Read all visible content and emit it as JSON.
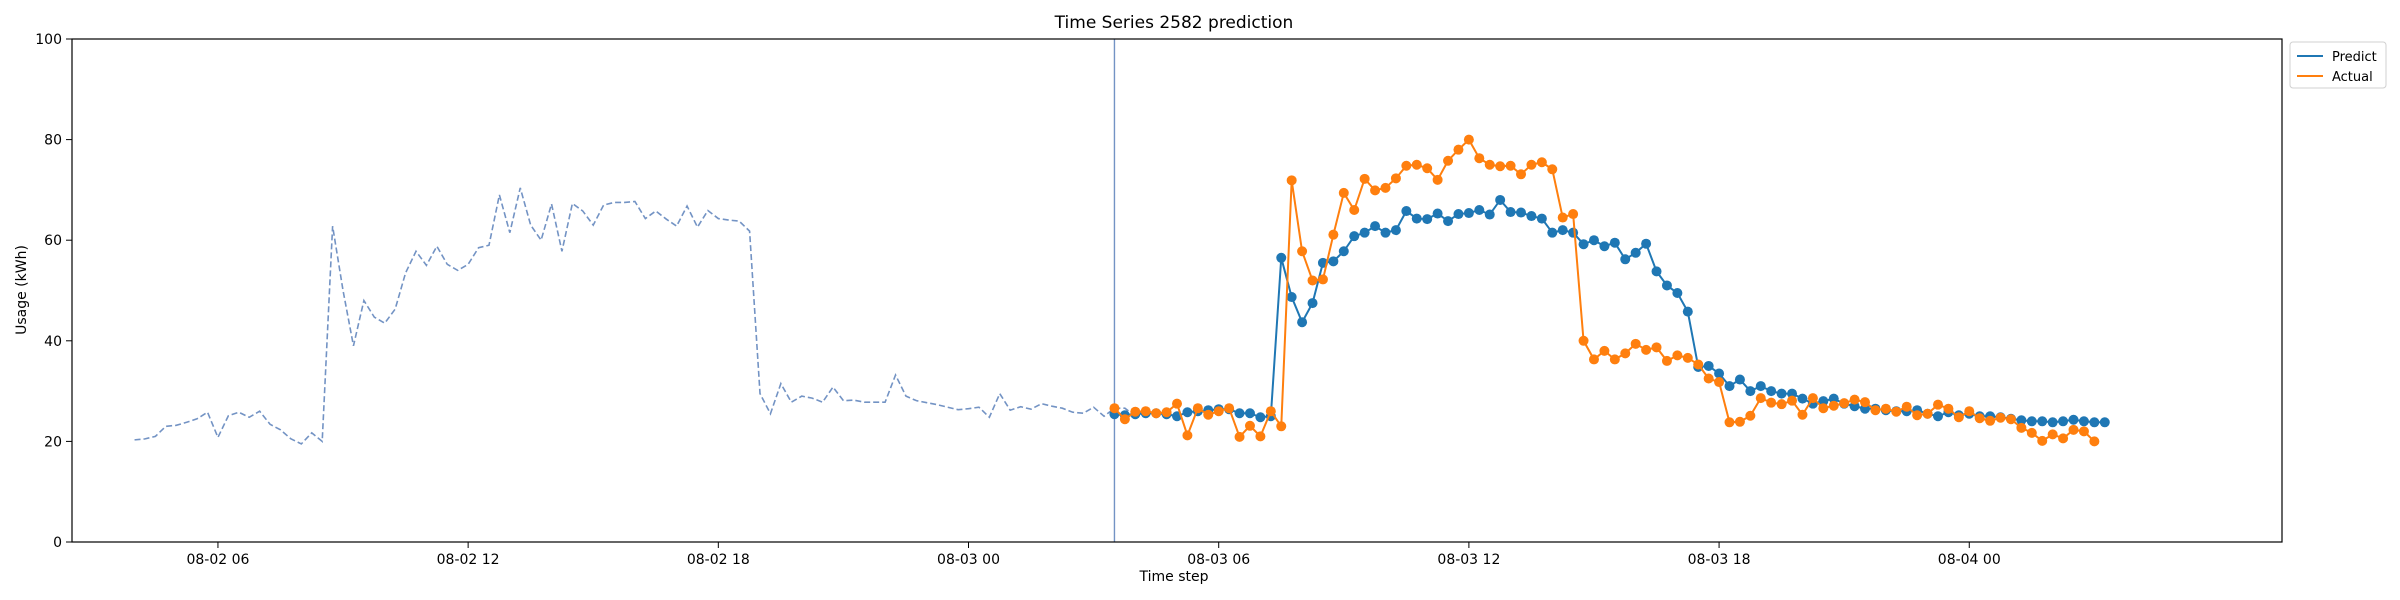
{
  "chart_data": {
    "type": "line",
    "title": "Time Series 2582 prediction",
    "xlabel": "Time step",
    "ylabel": "Usage (kWh)",
    "ylim": [
      0,
      100
    ],
    "yticks": [
      0,
      20,
      40,
      60,
      80,
      100
    ],
    "xlim": [
      "2024-08-02 02:30",
      "2024-08-04 07:30"
    ],
    "xticks": [
      {
        "t": "2024-08-02 06:00",
        "label": "08-02 06"
      },
      {
        "t": "2024-08-02 12:00",
        "label": "08-02 12"
      },
      {
        "t": "2024-08-02 18:00",
        "label": "08-02 18"
      },
      {
        "t": "2024-08-03 00:00",
        "label": "08-03 00"
      },
      {
        "t": "2024-08-03 06:00",
        "label": "08-03 06"
      },
      {
        "t": "2024-08-03 12:00",
        "label": "08-03 12"
      },
      {
        "t": "2024-08-03 18:00",
        "label": "08-03 18"
      },
      {
        "t": "2024-08-04 00:00",
        "label": "08-04 00"
      }
    ],
    "split_time": "2024-08-03 03:30",
    "grid": false,
    "legend_position": "outside-top-right",
    "colors": {
      "history": "#7393c4",
      "predict": "#1f77b4",
      "actual": "#ff7f0e",
      "split": "#7393c4"
    },
    "history": {
      "start": "2024-08-02 04:00",
      "step_minutes": 15,
      "values": [
        20.3,
        20.5,
        21.0,
        23.0,
        23.2,
        23.8,
        24.5,
        25.8,
        20.8,
        25.1,
        25.8,
        24.8,
        26.0,
        23.4,
        22.3,
        20.5,
        19.5,
        21.7,
        20.0,
        62.8,
        50.0,
        39.0,
        48.0,
        44.7,
        43.5,
        46.3,
        53.5,
        57.8,
        55.0,
        58.8,
        55.2,
        54.0,
        55.2,
        58.5,
        59.0,
        69.0,
        61.5,
        70.4,
        63.0,
        60.0,
        67.2,
        57.8,
        67.3,
        65.8,
        63.0,
        67.0,
        67.5,
        67.5,
        67.7,
        64.3,
        65.8,
        64.2,
        62.8,
        66.8,
        62.6,
        65.9,
        64.3,
        64.0,
        63.8,
        61.8,
        29.5,
        25.5,
        31.5,
        27.8,
        29.0,
        28.6,
        27.8,
        30.8,
        28.1,
        28.2,
        27.8,
        27.8,
        27.8,
        33.2,
        29.0,
        28.1,
        27.7,
        27.3,
        26.8,
        26.3,
        26.5,
        26.8,
        24.8,
        29.5,
        26.2,
        26.9,
        26.4,
        27.5,
        27.0,
        26.6,
        25.8,
        25.6,
        26.8,
        25.0,
        26.6,
        26.6,
        25.0,
        26.6
      ]
    },
    "series": [
      {
        "name": "Predict",
        "start": "2024-08-03 03:30",
        "step_minutes": 15,
        "values": [
          25.4,
          25.2,
          25.4,
          25.6,
          25.6,
          25.4,
          25.0,
          25.8,
          26.0,
          26.2,
          26.4,
          26.4,
          25.6,
          25.6,
          24.8,
          25.0,
          56.5,
          48.7,
          43.7,
          47.5,
          55.5,
          55.8,
          57.8,
          60.8,
          61.5,
          62.8,
          61.5,
          62.0,
          65.8,
          64.3,
          64.2,
          65.3,
          63.8,
          65.2,
          65.4,
          66.0,
          65.1,
          68.0,
          65.6,
          65.5,
          64.8,
          64.3,
          61.5,
          62.0,
          61.5,
          59.2,
          60.0,
          58.8,
          59.5,
          56.2,
          57.5,
          59.3,
          53.8,
          51.0,
          49.5,
          45.8,
          34.8,
          35.0,
          33.5,
          31.0,
          32.3,
          30.0,
          31.0,
          30.0,
          29.5,
          29.5,
          28.5,
          27.5,
          28.0,
          28.5,
          27.5,
          27.0,
          26.5,
          26.5,
          26.2,
          26.0,
          26.0,
          26.2,
          25.5,
          25.0,
          25.8,
          25.2,
          25.5,
          25.0,
          25.0,
          24.8,
          24.5,
          24.2,
          24.0,
          24.0,
          23.8,
          24.0,
          24.3,
          24.0,
          23.8,
          23.8
        ]
      },
      {
        "name": "Actual",
        "start": "2024-08-03 03:30",
        "step_minutes": 15,
        "values": [
          26.6,
          24.4,
          25.9,
          26.0,
          25.6,
          25.8,
          27.5,
          21.2,
          26.6,
          25.3,
          26.0,
          26.6,
          20.9,
          23.1,
          21.0,
          26.0,
          23.0,
          71.9,
          57.8,
          52.0,
          52.2,
          61.1,
          69.4,
          66.0,
          72.2,
          69.9,
          70.4,
          72.3,
          74.8,
          75.0,
          74.3,
          72.0,
          75.8,
          78.0,
          80.0,
          76.3,
          75.0,
          74.7,
          74.8,
          73.1,
          75.0,
          75.5,
          74.1,
          64.5,
          65.2,
          40.0,
          36.3,
          38.0,
          36.3,
          37.5,
          39.4,
          38.2,
          38.7,
          36.0,
          37.1,
          36.6,
          35.3,
          32.5,
          31.8,
          23.8,
          23.9,
          25.1,
          28.6,
          27.7,
          27.4,
          28.1,
          25.3,
          28.6,
          26.6,
          27.1,
          27.6,
          28.3,
          27.8,
          26.2,
          26.5,
          25.9,
          26.9,
          25.2,
          25.5,
          27.3,
          26.5,
          24.8,
          26.0,
          24.6,
          24.1,
          24.7,
          24.4,
          22.7,
          21.7,
          20.1,
          21.4,
          20.6,
          22.3,
          22.0,
          20.0
        ]
      }
    ]
  }
}
